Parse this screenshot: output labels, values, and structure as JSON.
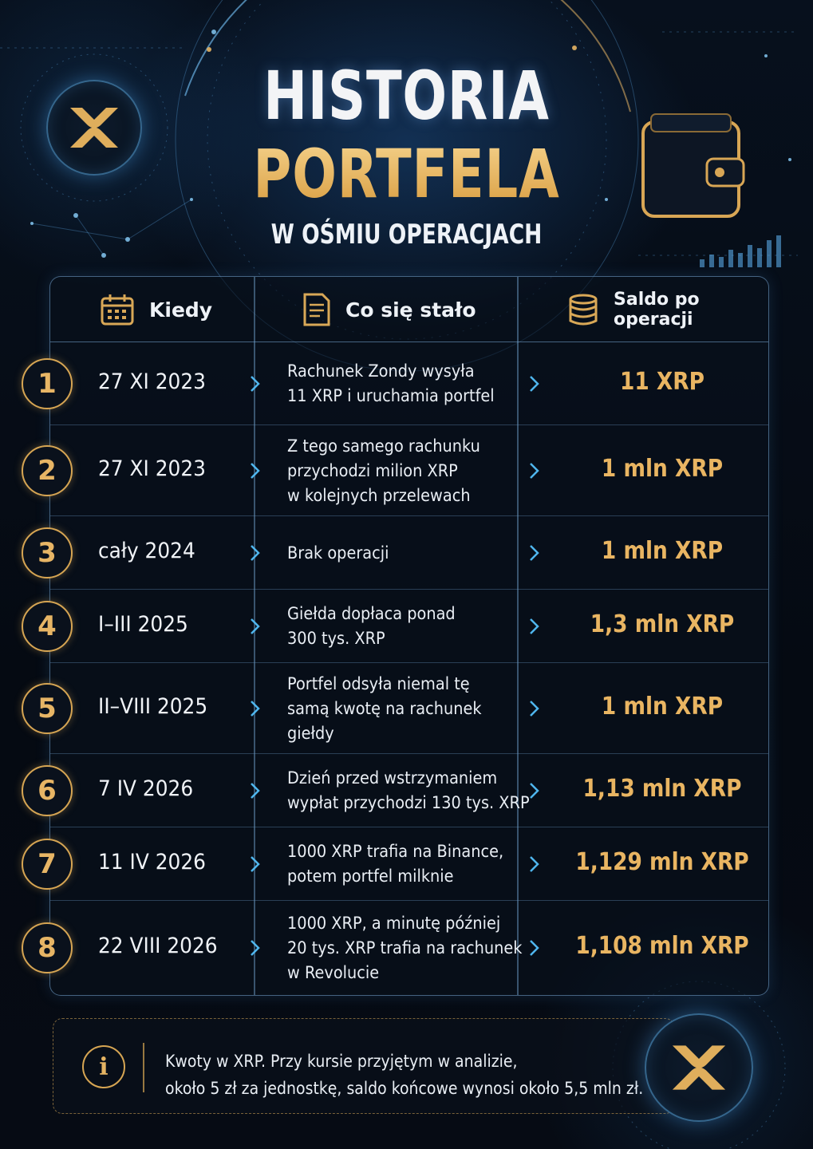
{
  "header": {
    "title_line1": "HISTORIA",
    "title_line2": "PORTFELA",
    "subtitle": "W OŚMIU OPERACJACH"
  },
  "table": {
    "columns": [
      "Kiedy",
      "Co się stało",
      "Saldo po operacji"
    ],
    "column_icons": [
      "calendar-icon",
      "document-icon",
      "coin-stack-icon"
    ],
    "rows": [
      {
        "num": "1",
        "when": "27 XI 2023",
        "what": [
          "Rachunek Zondy wysyła",
          "11 XRP i uruchamia portfel"
        ],
        "balance": "11 XRP"
      },
      {
        "num": "2",
        "when": "27 XI 2023",
        "what": [
          "Z tego samego rachunku",
          "przychodzi milion XRP",
          "w kolejnych przelewach"
        ],
        "balance": "1 mln XRP"
      },
      {
        "num": "3",
        "when": "cały 2024",
        "what": [
          "Brak operacji"
        ],
        "balance": "1 mln XRP"
      },
      {
        "num": "4",
        "when": "I–III 2025",
        "what": [
          "Giełda dopłaca ponad",
          "300 tys. XRP"
        ],
        "balance": "1,3 mln XRP"
      },
      {
        "num": "5",
        "when": "II–VIII 2025",
        "what": [
          "Portfel odsyła niemal tę",
          "samą kwotę na rachunek",
          "giełdy"
        ],
        "balance": "1 mln XRP"
      },
      {
        "num": "6",
        "when": "7 IV 2026",
        "what": [
          "Dzień przed wstrzymaniem",
          "wypłat przychodzi 130 tys. XRP"
        ],
        "balance": "1,13 mln XRP"
      },
      {
        "num": "7",
        "when": "11 IV 2026",
        "what": [
          "1000 XRP trafia na Binance,",
          "potem portfel milknie"
        ],
        "balance": "1,129 mln XRP"
      },
      {
        "num": "8",
        "when": "22 VIII 2026",
        "what": [
          "1000 XRP, a minutę później",
          "20 tys. XRP trafia na rachunek",
          "w Revolucie"
        ],
        "balance": "1,108 mln XRP"
      }
    ]
  },
  "note": {
    "icon": "info-icon",
    "lines": [
      "Kwoty w XRP. Przy kursie przyjętym w analizie,",
      "około 5 zł za jednostkę, saldo końcowe wynosi około 5,5 mln zł."
    ]
  },
  "colors": {
    "background": "#060b14",
    "accent_gold": "#e6b563",
    "border_blue": "#78aad7",
    "text": "#e9eef4"
  }
}
